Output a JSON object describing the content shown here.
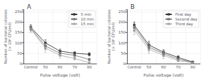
{
  "chart_data": [
    {
      "type": "line",
      "title": "A",
      "xlabel": "Pulse voltage (volt)",
      "ylabel": "Number of bacterial colonies\n(× 10² CFU/ml)",
      "categories": [
        "Control",
        "50",
        "60",
        "70",
        "80"
      ],
      "series": [
        {
          "name": "5 min",
          "color": "#333333",
          "marker": "square",
          "values": [
            175,
            100,
            60,
            50,
            45
          ],
          "errors": [
            12,
            15,
            10,
            8,
            8
          ]
        },
        {
          "name": "10 min",
          "color": "#777777",
          "marker": "square",
          "values": [
            170,
            85,
            50,
            40,
            20
          ],
          "errors": [
            14,
            18,
            12,
            8,
            6
          ]
        },
        {
          "name": "15 min",
          "color": "#aaaaaa",
          "marker": "square",
          "values": [
            165,
            75,
            40,
            25,
            5
          ],
          "errors": [
            16,
            20,
            14,
            8,
            3
          ]
        }
      ],
      "ylim": [
        0,
        260
      ],
      "yticks": [
        0,
        50,
        100,
        150,
        200,
        250
      ],
      "grid": true,
      "legend": "upper right"
    },
    {
      "type": "line",
      "title": "B",
      "xlabel": "Pulse voltage (volt)",
      "ylabel": "Number of bacterial colonies\n(× 10² CFU/ml)",
      "categories": [
        "Control",
        "50",
        "60",
        "70",
        "80"
      ],
      "series": [
        {
          "name": "First day",
          "color": "#333333",
          "marker": "square",
          "values": [
            185,
            90,
            55,
            30,
            8
          ],
          "errors": [
            15,
            18,
            12,
            8,
            4
          ]
        },
        {
          "name": "Second day",
          "color": "#777777",
          "marker": "square",
          "values": [
            175,
            80,
            48,
            22,
            6
          ],
          "errors": [
            18,
            20,
            14,
            7,
            3
          ]
        },
        {
          "name": "Third day",
          "color": "#aaaaaa",
          "marker": "square",
          "values": [
            160,
            70,
            40,
            15,
            4
          ],
          "errors": [
            20,
            22,
            16,
            6,
            3
          ]
        }
      ],
      "ylim": [
        0,
        260
      ],
      "yticks": [
        0,
        50,
        100,
        150,
        200,
        250
      ],
      "grid": true,
      "legend": "upper right"
    }
  ]
}
